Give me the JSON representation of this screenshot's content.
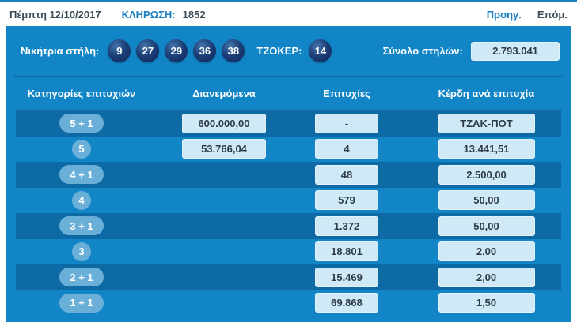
{
  "header": {
    "date": "Πέμπτη 12/10/2017",
    "draw_label": "ΚΛΗΡΩΣΗ:",
    "draw_number": "1852",
    "prev_label": "Προηγ.",
    "next_label": "Επόμ."
  },
  "panel": {
    "winning_label": "Νικήτρια στήλη:",
    "numbers": [
      "9",
      "27",
      "29",
      "36",
      "38"
    ],
    "joker_label": "ΤΖΟΚΕΡ:",
    "joker_number": "14",
    "total_columns_label": "Σύνολο στηλών:",
    "total_columns_value": "2.793.041"
  },
  "table": {
    "headers": [
      "Κατηγορίες επιτυχιών",
      "Διανεμόμενα",
      "Επιτυχίες",
      "Κέρδη ανά επιτυχία"
    ],
    "rows": [
      {
        "category": "5 + 1",
        "distributed": "600.000,00",
        "winners": "-",
        "prize": "ΤΖΑΚ-ΠΟΤ"
      },
      {
        "category": "5",
        "distributed": "53.766,04",
        "winners": "4",
        "prize": "13.441,51"
      },
      {
        "category": "4 + 1",
        "distributed": null,
        "winners": "48",
        "prize": "2.500,00"
      },
      {
        "category": "4",
        "distributed": null,
        "winners": "579",
        "prize": "50,00"
      },
      {
        "category": "3 + 1",
        "distributed": null,
        "winners": "1.372",
        "prize": "50,00"
      },
      {
        "category": "3",
        "distributed": null,
        "winners": "18.801",
        "prize": "2,00"
      },
      {
        "category": "2 + 1",
        "distributed": null,
        "winners": "15.469",
        "prize": "2,00"
      },
      {
        "category": "1 + 1",
        "distributed": null,
        "winners": "69.868",
        "prize": "1,50"
      }
    ]
  },
  "colors": {
    "accent": "#1b80c1",
    "panel": "#1285c6",
    "dark_row": "#0d6aa5",
    "pill": "#6aafd8",
    "box": "#cfe9f7",
    "ball": "#132f64"
  }
}
